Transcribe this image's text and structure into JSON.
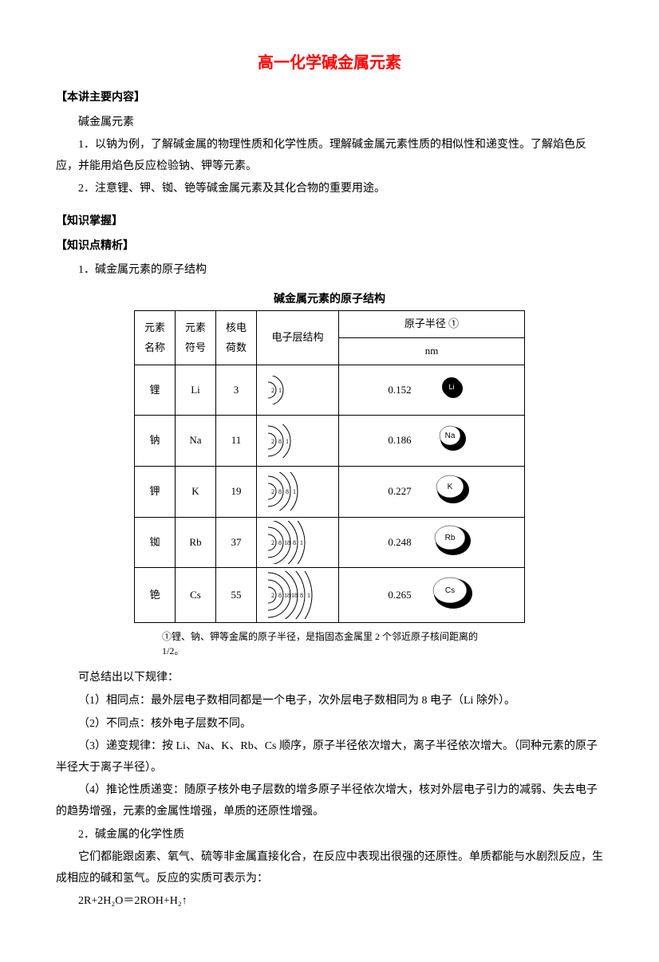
{
  "title": "高一化学碱金属元素",
  "sec1_head": "【本讲主要内容】",
  "sec1_l1": "碱金属元素",
  "sec1_l2": "1．以钠为例，了解碱金属的物理性质和化学性质。理解碱金属元素性质的相似性和递变性。了解焰色反应，并能用焰色反应检验钠、钾等元素。",
  "sec1_l3": "2．注意锂、钾、铷、铯等碱金属元素及其化合物的重要用途。",
  "sec2_head": "【知识掌握】",
  "sec3_head": "【知识点精析】",
  "sec3_l1": "1．碱金属元素的原子结构",
  "table_title": "碱金属元素的原子结构",
  "th_name": "元素名称",
  "th_sym": "元素符号",
  "th_z": "核电荷数",
  "th_shell": "电子层结构",
  "th_rad_top": "原子半径 ①",
  "th_rad_unit": "nm",
  "rows": [
    {
      "name": "锂",
      "sym": "Li",
      "z": "3",
      "shells": [
        2,
        1
      ],
      "radius": "0.152",
      "ball_rx": 12,
      "ball_ry": 12,
      "label": "Li",
      "label_bg": "#000",
      "label_fg": "#fff"
    },
    {
      "name": "钠",
      "sym": "Na",
      "z": "11",
      "shells": [
        2,
        8,
        1
      ],
      "radius": "0.186",
      "ball_rx": 16,
      "ball_ry": 15,
      "label": "Na",
      "label_bg": "#fff",
      "label_fg": "#000"
    },
    {
      "name": "钾",
      "sym": "K",
      "z": "19",
      "shells": [
        2,
        8,
        8,
        1
      ],
      "radius": "0.227",
      "ball_rx": 20,
      "ball_ry": 17,
      "label": "K",
      "label_bg": "#fff",
      "label_fg": "#000"
    },
    {
      "name": "铷",
      "sym": "Rb",
      "z": "37",
      "shells": [
        2,
        8,
        18,
        8,
        1
      ],
      "radius": "0.248",
      "ball_rx": 22,
      "ball_ry": 18,
      "label": "Rb",
      "label_bg": "#fff",
      "label_fg": "#000"
    },
    {
      "name": "铯",
      "sym": "Cs",
      "z": "55",
      "shells": [
        2,
        8,
        18,
        18,
        8,
        1
      ],
      "radius": "0.265",
      "ball_rx": 24,
      "ball_ry": 19,
      "label": "Cs",
      "label_bg": "#fff",
      "label_fg": "#000"
    }
  ],
  "footnote": "①锂、钠、钾等金属的原子半径，是指固态金属里 2 个邻近原子核间距离的 1/2。",
  "p_summary": "可总结出以下规律：",
  "p_rule1": "（1）相同点：最外层电子数相同都是一个电子，次外层电子数相同为 8 电子（Li 除外）。",
  "p_rule2": "（2）不同点：核外电子层数不同。",
  "p_rule3": "（3）递变规律：按 Li、Na、K、Rb、Cs 顺序，原子半径依次增大，离子半径依次增大。（同种元素的原子半径大于离子半径）。",
  "p_rule4": "（4）推论性质递变：随原子核外电子层数的增多原子半径依次增大，核对外层电子引力的减弱、失去电子的趋势增强，元素的金属性增强，单质的还原性增强。",
  "sec4_l1": "2．碱金属的化学性质",
  "p_chem": "它们都能跟卤素、氧气、硫等非金属直接化合，在反应中表现出很强的还原性。单质都能与水剧烈反应，生成相应的碱和氢气。反应的实质可表示为：",
  "equation": "2R+2H₂O＝2ROH+H₂↑",
  "colors": {
    "title": "#ff0000",
    "text": "#000000",
    "border": "#000000",
    "bg": "#ffffff"
  }
}
